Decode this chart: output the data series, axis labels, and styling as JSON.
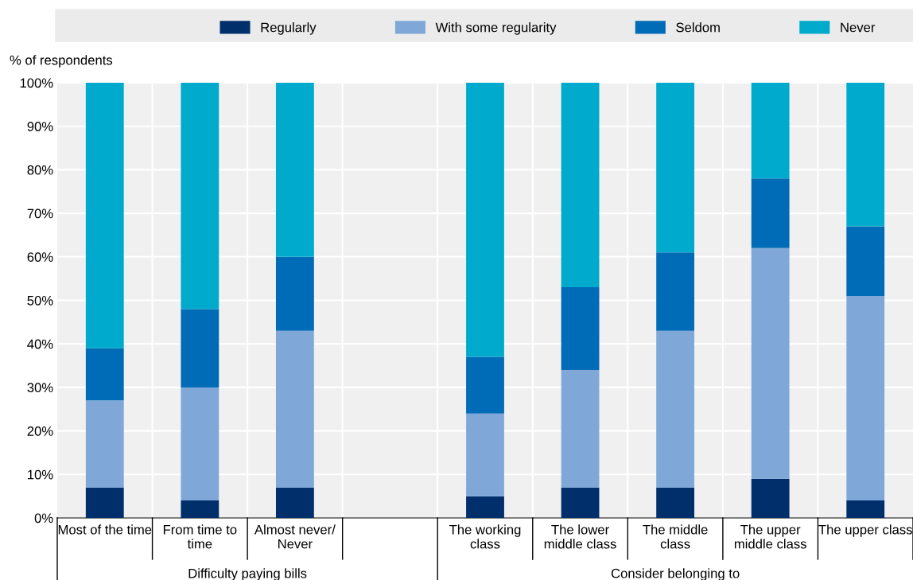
{
  "chart_data": {
    "type": "bar",
    "stacked": true,
    "ylabel": "% of respondents",
    "categories": [
      "Most of the time",
      "From time to\ntime",
      "Almost never/\nNever",
      null,
      "The working\nclass",
      "The lower\nmiddle class",
      "The middle\nclass",
      "The upper\nmiddle class",
      "The upper class"
    ],
    "series": [
      {
        "name": "Regularly",
        "color": "#002f6c",
        "values": [
          7,
          4,
          7,
          null,
          5,
          7,
          7,
          9,
          4
        ]
      },
      {
        "name": "With some regularity",
        "color": "#7fa8d9",
        "values": [
          20,
          26,
          36,
          null,
          19,
          27,
          36,
          53,
          47
        ]
      },
      {
        "name": "Seldom",
        "color": "#006bb6",
        "values": [
          12,
          18,
          17,
          null,
          13,
          19,
          18,
          16,
          16
        ]
      },
      {
        "name": "Never",
        "color": "#00aacc",
        "values": [
          61,
          52,
          40,
          null,
          63,
          47,
          39,
          22,
          33
        ]
      }
    ],
    "ylim": [
      0,
      100
    ],
    "yticks": [
      {
        "value": 0,
        "label": "0%"
      },
      {
        "value": 10,
        "label": "10%"
      },
      {
        "value": 20,
        "label": "20%"
      },
      {
        "value": 30,
        "label": "30%"
      },
      {
        "value": 40,
        "label": "40%"
      },
      {
        "value": 50,
        "label": "50%"
      },
      {
        "value": 60,
        "label": "60%"
      },
      {
        "value": 70,
        "label": "70%"
      },
      {
        "value": 80,
        "label": "80%"
      },
      {
        "value": 90,
        "label": "90%"
      },
      {
        "value": 100,
        "label": "100%"
      }
    ],
    "grid": "y",
    "legend": "top",
    "annotations": [
      "Difficulty paying bills",
      "Consider belonging to"
    ]
  }
}
